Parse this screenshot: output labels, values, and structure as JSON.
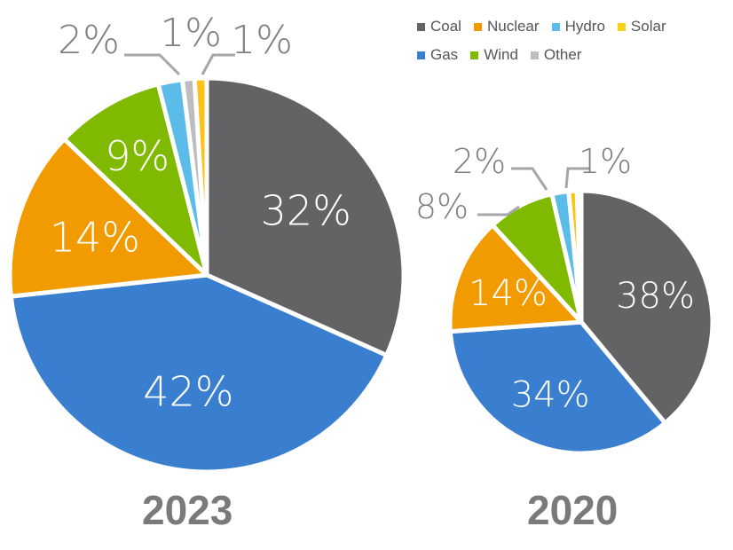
{
  "chart_data": [
    {
      "type": "pie",
      "title": "2023",
      "slices": [
        {
          "name": "Coal",
          "value": 32,
          "label": "32%"
        },
        {
          "name": "Gas",
          "value": 42,
          "label": "42%"
        },
        {
          "name": "Nuclear",
          "value": 14,
          "label": "14%"
        },
        {
          "name": "Wind",
          "value": 9,
          "label": "9%"
        },
        {
          "name": "Hydro",
          "value": 2,
          "label": "2%"
        },
        {
          "name": "Other",
          "value": 1,
          "label": "1%"
        },
        {
          "name": "Solar",
          "value": 1,
          "label": "1%"
        }
      ]
    },
    {
      "type": "pie",
      "title": "2020",
      "slices": [
        {
          "name": "Coal",
          "value": 38,
          "label": "38%"
        },
        {
          "name": "Gas",
          "value": 34,
          "label": "34%"
        },
        {
          "name": "Nuclear",
          "value": 14,
          "label": "14%"
        },
        {
          "name": "Wind",
          "value": 8,
          "label": "8%"
        },
        {
          "name": "Hydro",
          "value": 2,
          "label": "2%"
        },
        {
          "name": "Solar",
          "value": 1,
          "label": "1%"
        },
        {
          "name": "Other",
          "value": 0.5,
          "label": ""
        }
      ]
    }
  ],
  "legend": [
    [
      {
        "name": "Coal",
        "color": "#636366"
      },
      {
        "name": "Nuclear",
        "color": "#f29b00"
      },
      {
        "name": "Hydro",
        "color": "#5bbbe9"
      },
      {
        "name": "Solar",
        "color": "#fbd21a"
      }
    ],
    [
      {
        "name": "Gas",
        "color": "#3a7fcf"
      },
      {
        "name": "Wind",
        "color": "#7fba00"
      },
      {
        "name": "Other",
        "color": "#bdbdbd"
      }
    ]
  ],
  "colors": {
    "Coal": "#636366",
    "Gas": "#3a7fcf",
    "Nuclear": "#f29b00",
    "Wind": "#7fba00",
    "Hydro": "#5bbbe9",
    "Solar": "#fbc21a",
    "Other": "#bdbdbd"
  }
}
